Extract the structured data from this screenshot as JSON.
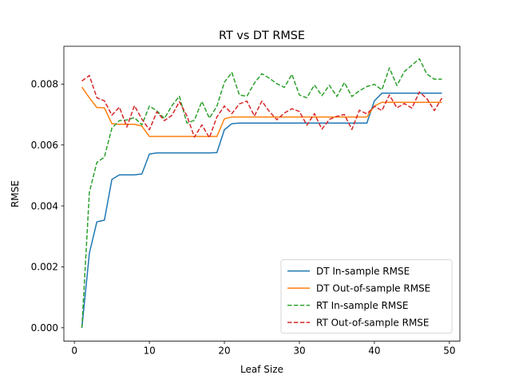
{
  "chart_data": {
    "type": "line",
    "title": "RT vs DT RMSE",
    "xlabel": "Leaf Size",
    "ylabel": "RMSE",
    "xlim": [
      -1.4,
      51.4
    ],
    "ylim": [
      -0.00044,
      0.00924
    ],
    "xticks": [
      0,
      10,
      20,
      30,
      40,
      50
    ],
    "yticks": [
      0.0,
      0.002,
      0.004,
      0.006,
      0.008
    ],
    "xtick_labels": [
      "0",
      "10",
      "20",
      "30",
      "40",
      "50"
    ],
    "ytick_labels": [
      "0.000",
      "0.002",
      "0.004",
      "0.006",
      "0.008"
    ],
    "grid": false,
    "legend_position": "lower-right",
    "x": [
      1,
      2,
      3,
      4,
      5,
      6,
      7,
      8,
      9,
      10,
      11,
      12,
      13,
      14,
      15,
      16,
      17,
      18,
      19,
      20,
      21,
      22,
      23,
      24,
      25,
      26,
      27,
      28,
      29,
      30,
      31,
      32,
      33,
      34,
      35,
      36,
      37,
      38,
      39,
      40,
      41,
      42,
      43,
      44,
      45,
      46,
      47,
      48,
      49
    ],
    "series": [
      {
        "name": "DT In-sample RMSE",
        "color": "#1f77b4",
        "style": "solid",
        "values": [
          0.0,
          0.00245,
          0.00348,
          0.00353,
          0.00487,
          0.00502,
          0.00502,
          0.00502,
          0.00505,
          0.0057,
          0.00574,
          0.00574,
          0.00574,
          0.00574,
          0.00574,
          0.00574,
          0.00574,
          0.00574,
          0.00575,
          0.0065,
          0.0067,
          0.00672,
          0.00672,
          0.00672,
          0.00672,
          0.00672,
          0.00672,
          0.00672,
          0.00672,
          0.00672,
          0.00672,
          0.00672,
          0.00672,
          0.00672,
          0.00672,
          0.00672,
          0.00672,
          0.00672,
          0.00672,
          0.00745,
          0.0077,
          0.0077,
          0.0077,
          0.0077,
          0.0077,
          0.0077,
          0.0077,
          0.0077,
          0.0077
        ]
      },
      {
        "name": "DT Out-of-sample RMSE",
        "color": "#ff7f0e",
        "style": "solid",
        "values": [
          0.0079,
          0.00755,
          0.00723,
          0.00722,
          0.0067,
          0.00668,
          0.00668,
          0.00668,
          0.00662,
          0.00628,
          0.00628,
          0.00628,
          0.00628,
          0.00628,
          0.00628,
          0.00628,
          0.00628,
          0.00628,
          0.00628,
          0.00686,
          0.00692,
          0.00692,
          0.00692,
          0.00692,
          0.00692,
          0.00692,
          0.00692,
          0.00692,
          0.00692,
          0.00692,
          0.00692,
          0.00692,
          0.00692,
          0.00692,
          0.00692,
          0.00692,
          0.00692,
          0.00692,
          0.00692,
          0.00728,
          0.0074,
          0.0074,
          0.0074,
          0.0074,
          0.0074,
          0.0074,
          0.0074,
          0.0074,
          0.0074
        ]
      },
      {
        "name": "RT In-sample RMSE",
        "color": "#2ca02c",
        "style": "dashed",
        "values": [
          0.0,
          0.00445,
          0.00543,
          0.0056,
          0.00655,
          0.0068,
          0.00682,
          0.0069,
          0.00666,
          0.00728,
          0.00712,
          0.00687,
          0.00729,
          0.0076,
          0.00672,
          0.00681,
          0.00743,
          0.00688,
          0.00727,
          0.00806,
          0.00838,
          0.00764,
          0.0076,
          0.00803,
          0.00834,
          0.00819,
          0.00801,
          0.00789,
          0.00832,
          0.00764,
          0.00755,
          0.00797,
          0.00762,
          0.00796,
          0.00759,
          0.00805,
          0.00759,
          0.00778,
          0.00792,
          0.00799,
          0.00781,
          0.00853,
          0.00795,
          0.00841,
          0.00862,
          0.00883,
          0.00833,
          0.00816,
          0.00816
        ]
      },
      {
        "name": "RT Out-of-sample RMSE",
        "color": "#d62728",
        "style": "dashed",
        "values": [
          0.0081,
          0.00828,
          0.00755,
          0.00745,
          0.00698,
          0.00724,
          0.00659,
          0.00729,
          0.00685,
          0.0065,
          0.00709,
          0.0068,
          0.00697,
          0.00742,
          0.00696,
          0.00626,
          0.00666,
          0.00624,
          0.00692,
          0.00728,
          0.00703,
          0.00735,
          0.00744,
          0.00695,
          0.00744,
          0.0071,
          0.00683,
          0.00705,
          0.00719,
          0.0071,
          0.00665,
          0.00703,
          0.00652,
          0.00684,
          0.00694,
          0.007,
          0.00651,
          0.00714,
          0.00702,
          0.00727,
          0.00713,
          0.00764,
          0.00722,
          0.00736,
          0.00721,
          0.00774,
          0.00752,
          0.00713,
          0.00754
        ]
      }
    ]
  }
}
